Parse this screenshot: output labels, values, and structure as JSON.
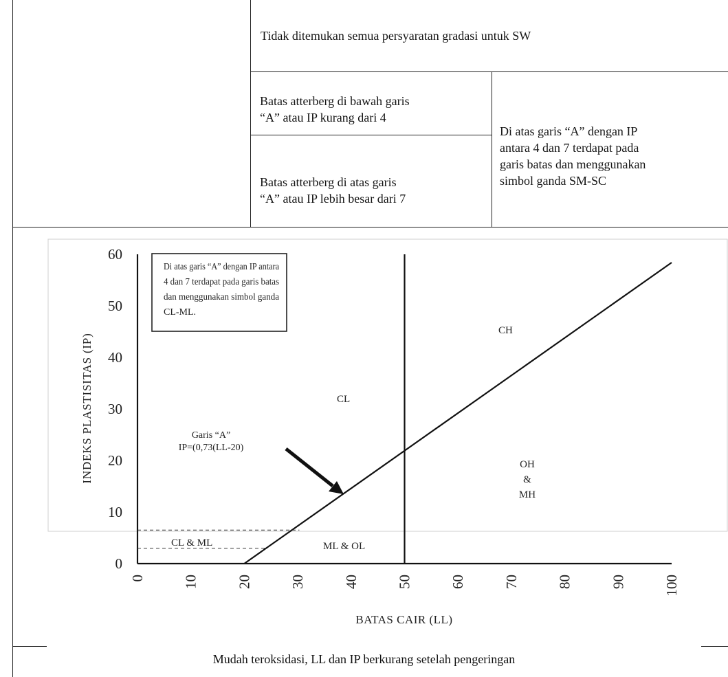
{
  "table": {
    "row_sw": "Tidak ditemukan semua persyaratan gradasi untuk SW",
    "below_a_line": "Batas atterberg di bawah garis",
    "below_a_line_2": "“A” atau IP kurang dari 4",
    "above_a_line": "Batas atterberg di atas garis",
    "above_a_line_2": "“A” atau IP lebih besar dari 7",
    "dual_symbol_1": "Di atas garis “A” dengan IP",
    "dual_symbol_2": "antara 4 dan 7 terdapat pada",
    "dual_symbol_3": "garis batas dan menggunakan",
    "dual_symbol_4": "simbol ganda SM-SC"
  },
  "chart_data": {
    "type": "line",
    "title": "",
    "xlabel": "BATAS CAIR (LL)",
    "ylabel": "INDEKS PLASTISITAS (IP)",
    "xlim": [
      0,
      100
    ],
    "ylim": [
      0,
      60
    ],
    "x_ticks": [
      "0",
      "10",
      "20",
      "30",
      "40",
      "50",
      "60",
      "70",
      "80",
      "90",
      "100"
    ],
    "y_ticks": [
      "0",
      "10",
      "20",
      "30",
      "40",
      "50",
      "60"
    ],
    "a_line": {
      "x": [
        20,
        100
      ],
      "y": [
        0,
        58.4
      ]
    },
    "ll_50_line": {
      "x": [
        50,
        50
      ],
      "y": [
        0,
        60
      ]
    },
    "dashed_lines": [
      {
        "x": [
          0,
          30.3
        ],
        "y": [
          6.5,
          6.5
        ]
      },
      {
        "x": [
          0,
          24.1
        ],
        "y": [
          3,
          3
        ]
      }
    ],
    "a_line_label_1": "Garis “A”",
    "a_line_label_2": "IP=(0,73(LL-20)",
    "note_1": "Di atas garis “A” dengan IP antara",
    "note_2": "4 dan 7 terdapat pada garis batas",
    "note_3": "dan menggunakan simbol ganda",
    "note_4": "CL-ML.",
    "regions": {
      "ch": "CH",
      "cl": "CL",
      "oh": "OH",
      "amp": "&",
      "mh": "MH",
      "clml": "CL & ML",
      "mlol": "ML & OL"
    },
    "grid": false,
    "legend": "none"
  },
  "footer": {
    "text": "Mudah teroksidasi, LL dan IP berkurang setelah pengeringan"
  }
}
